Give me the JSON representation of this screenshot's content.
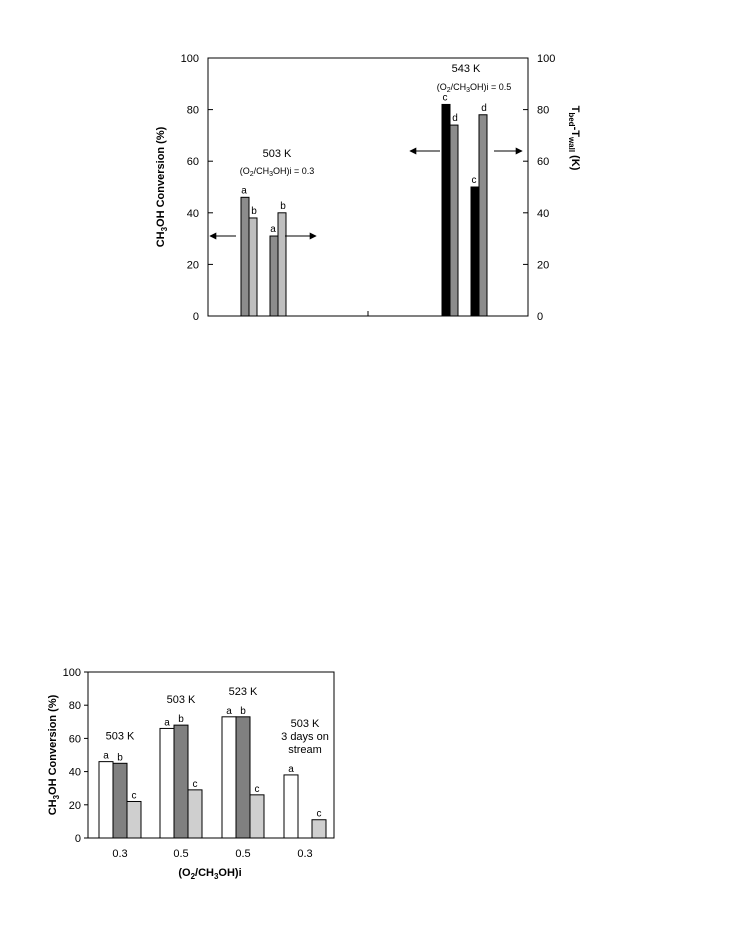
{
  "chart_data": [
    {
      "type": "bar",
      "title": "",
      "ylabel_left": "CH3OH Conversion (%)",
      "ylabel_right": "Tbed-Twall (K)",
      "ylim": [
        0,
        100
      ],
      "yticks": [
        0,
        20,
        40,
        60,
        80,
        100
      ],
      "groups": [
        {
          "annotation": "503 K",
          "sub_annotation": "(O2/CH3OH)i = 0.3",
          "bars": [
            {
              "label": "a",
              "value": 46,
              "color": "#8c8c8c"
            },
            {
              "label": "b",
              "value": 38,
              "color": "#bfbfbf"
            },
            {
              "label": "a",
              "value": 31,
              "color": "#8c8c8c"
            },
            {
              "label": "b",
              "value": 40,
              "color": "#bfbfbf"
            }
          ]
        },
        {
          "annotation": "543 K",
          "sub_annotation": "(O2/CH3OH)i = 0.5",
          "bars": [
            {
              "label": "c",
              "value": 82,
              "color": "#000000"
            },
            {
              "label": "d",
              "value": 74,
              "color": "#8c8c8c"
            },
            {
              "label": "c",
              "value": 50,
              "color": "#000000"
            },
            {
              "label": "d",
              "value": 78,
              "color": "#8c8c8c"
            }
          ]
        }
      ]
    },
    {
      "type": "bar",
      "title": "",
      "xlabel": "(O2/CH3OH)i",
      "ylabel": "CH3OH Conversion (%)",
      "ylim": [
        0,
        100
      ],
      "yticks": [
        0,
        20,
        40,
        60,
        80,
        100
      ],
      "categories": [
        "0.3",
        "0.5",
        "0.5",
        "0.3"
      ],
      "group_annotations": [
        [
          "503 K"
        ],
        [
          "503 K"
        ],
        [
          "523 K"
        ],
        [
          "503 K",
          "3 days on",
          "stream"
        ]
      ],
      "groups": [
        [
          {
            "label": "a",
            "value": 46,
            "color": "#ffffff"
          },
          {
            "label": "b",
            "value": 45,
            "color": "#808080"
          },
          {
            "label": "c",
            "value": 22,
            "color": "#cfcfcf"
          }
        ],
        [
          {
            "label": "a",
            "value": 66,
            "color": "#ffffff"
          },
          {
            "label": "b",
            "value": 68,
            "color": "#808080"
          },
          {
            "label": "c",
            "value": 29,
            "color": "#cfcfcf"
          }
        ],
        [
          {
            "label": "a",
            "value": 73,
            "color": "#ffffff"
          },
          {
            "label": "b",
            "value": 73,
            "color": "#808080"
          },
          {
            "label": "c",
            "value": 26,
            "color": "#cfcfcf"
          }
        ],
        [
          {
            "label": "a",
            "value": 38,
            "color": "#ffffff"
          },
          {
            "label": "c",
            "value": 11,
            "color": "#cfcfcf"
          }
        ]
      ]
    }
  ]
}
